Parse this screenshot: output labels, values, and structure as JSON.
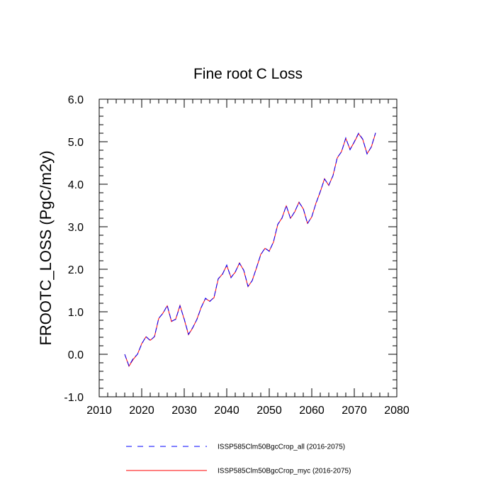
{
  "chart_data": {
    "type": "line",
    "title": "Fine root C Loss",
    "xlabel": "",
    "ylabel": "FROOTC_LOSS  (PgC/m2y)",
    "xlim": [
      2010,
      2080
    ],
    "ylim": [
      -1.0,
      6.0
    ],
    "xticks": [
      2010,
      2020,
      2030,
      2040,
      2050,
      2060,
      2070,
      2080
    ],
    "xtick_labels": [
      "2010",
      "2020",
      "2030",
      "2040",
      "2050",
      "2060",
      "2070",
      "2080"
    ],
    "yticks": [
      -1.0,
      0.0,
      1.0,
      2.0,
      3.0,
      4.0,
      5.0,
      6.0
    ],
    "ytick_labels": [
      "-1.0",
      "0.0",
      "1.0",
      "2.0",
      "3.0",
      "4.0",
      "5.0",
      "6.0"
    ],
    "grid": false,
    "legend_position": "bottom",
    "x": [
      2016,
      2017,
      2018,
      2019,
      2020,
      2021,
      2022,
      2023,
      2024,
      2025,
      2026,
      2027,
      2028,
      2029,
      2030,
      2031,
      2032,
      2033,
      2034,
      2035,
      2036,
      2037,
      2038,
      2039,
      2040,
      2041,
      2042,
      2043,
      2044,
      2045,
      2046,
      2047,
      2048,
      2049,
      2050,
      2051,
      2052,
      2053,
      2054,
      2055,
      2056,
      2057,
      2058,
      2059,
      2060,
      2061,
      2062,
      2063,
      2064,
      2065,
      2066,
      2067,
      2068,
      2069,
      2070,
      2071,
      2072,
      2073,
      2074,
      2075
    ],
    "series": [
      {
        "name": "ISSP585Clm50BgcCrop_all (2016-2075)",
        "color": "#0000ff",
        "dash": "dashed",
        "values": [
          0.0,
          -0.27,
          -0.1,
          0.0,
          0.24,
          0.42,
          0.32,
          0.42,
          0.85,
          0.96,
          1.15,
          0.78,
          0.82,
          1.14,
          0.83,
          0.47,
          0.63,
          0.82,
          1.1,
          1.32,
          1.24,
          1.34,
          1.78,
          1.88,
          2.1,
          1.8,
          1.94,
          2.14,
          1.98,
          1.6,
          1.73,
          2.04,
          2.34,
          2.5,
          2.42,
          2.65,
          3.06,
          3.2,
          3.5,
          3.19,
          3.36,
          3.57,
          3.43,
          3.07,
          3.24,
          3.55,
          3.83,
          4.12,
          3.98,
          4.2,
          4.63,
          4.76,
          5.09,
          4.81,
          5.0,
          5.2,
          5.06,
          4.71,
          4.88,
          5.21
        ]
      },
      {
        "name": "ISSP585Clm50BgcCrop_myc (2016-2075)",
        "color": "#ff0000",
        "dash": "solid",
        "values": [
          0.0,
          -0.28,
          -0.12,
          0.0,
          0.25,
          0.41,
          0.33,
          0.41,
          0.84,
          0.97,
          1.14,
          0.77,
          0.83,
          1.15,
          0.82,
          0.46,
          0.62,
          0.83,
          1.11,
          1.31,
          1.25,
          1.33,
          1.77,
          1.89,
          2.09,
          1.81,
          1.93,
          2.15,
          1.97,
          1.59,
          1.74,
          2.03,
          2.35,
          2.49,
          2.43,
          2.64,
          3.05,
          3.21,
          3.49,
          3.2,
          3.35,
          3.58,
          3.42,
          3.08,
          3.23,
          3.56,
          3.82,
          4.13,
          3.97,
          4.21,
          4.62,
          4.77,
          5.08,
          4.82,
          4.99,
          5.19,
          5.05,
          4.72,
          4.87,
          5.2
        ]
      }
    ]
  }
}
